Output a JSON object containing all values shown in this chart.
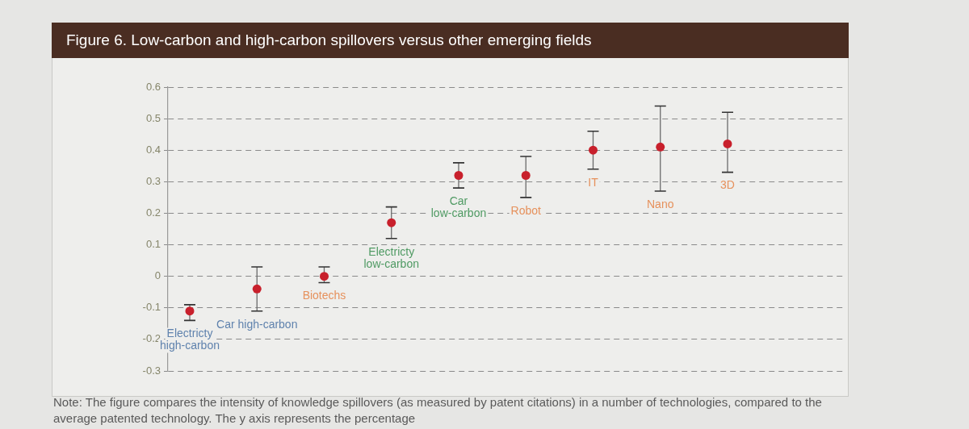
{
  "chart_data": {
    "type": "scatter",
    "title": "Figure 6. Low-carbon and high-carbon spillovers versus other emerging fields",
    "categories": [
      "Electricty\nhigh-carbon",
      "Car high-carbon",
      "Biotechs",
      "Electricty\nlow-carbon",
      "Car\nlow-carbon",
      "Robot",
      "IT",
      "Nano",
      "3D"
    ],
    "values": [
      -0.11,
      -0.04,
      0,
      0.17,
      0.32,
      0.32,
      0.4,
      0.41,
      0.42
    ],
    "errors": [
      [
        -0.14,
        -0.09
      ],
      [
        -0.11,
        0.03
      ],
      [
        -0.02,
        0.03
      ],
      [
        0.12,
        0.22
      ],
      [
        0.28,
        0.36
      ],
      [
        0.25,
        0.38
      ],
      [
        0.34,
        0.46
      ],
      [
        0.27,
        0.54
      ],
      [
        0.33,
        0.52
      ]
    ],
    "color": "#c8202c",
    "marker": "circle",
    "ylim": [
      -0.3,
      0.6
    ],
    "yticks": [
      -0.3,
      -0.2,
      -0.1,
      0,
      0.1,
      0.2,
      0.3,
      0.4,
      0.5,
      0.6
    ],
    "grid": "y",
    "annotations": [
      "Note: The figure compares the intensity of knowledge spillovers (as measured by patent citations) in a number of technologies, compared to the average patented technology. The y axis represents the percentage"
    ]
  }
}
